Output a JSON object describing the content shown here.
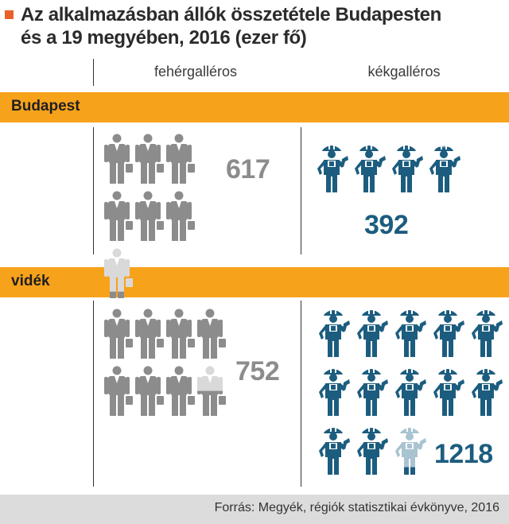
{
  "header": {
    "title_line1": "Az alkalmazásban állók összetétele Budapesten",
    "title_line2": "és a 19 megyében, 2016 (ezer fő)"
  },
  "colors": {
    "accent_orange": "#f7a21b",
    "title_mark": "#e8612a",
    "white_collar": "#8c8c8c",
    "white_collar_faded": "#d9d9d9",
    "blue_collar": "#1c5d7f",
    "blue_collar_faded": "#a9c3d1",
    "footer_bg": "#dcdcdc"
  },
  "columns": {
    "white_collar": "fehérgalléros",
    "blue_collar": "kékgalléros"
  },
  "chart_data": {
    "type": "pictogram",
    "categories": [
      "Budapest",
      "vidék"
    ],
    "series": [
      {
        "name": "fehérgalléros",
        "values": [
          617,
          752
        ]
      },
      {
        "name": "kékgalléros",
        "values": [
          392,
          1218
        ]
      }
    ]
  },
  "footer": {
    "source": "Forrás: Megyék, régiók statisztikai évkönyve, 2016"
  }
}
